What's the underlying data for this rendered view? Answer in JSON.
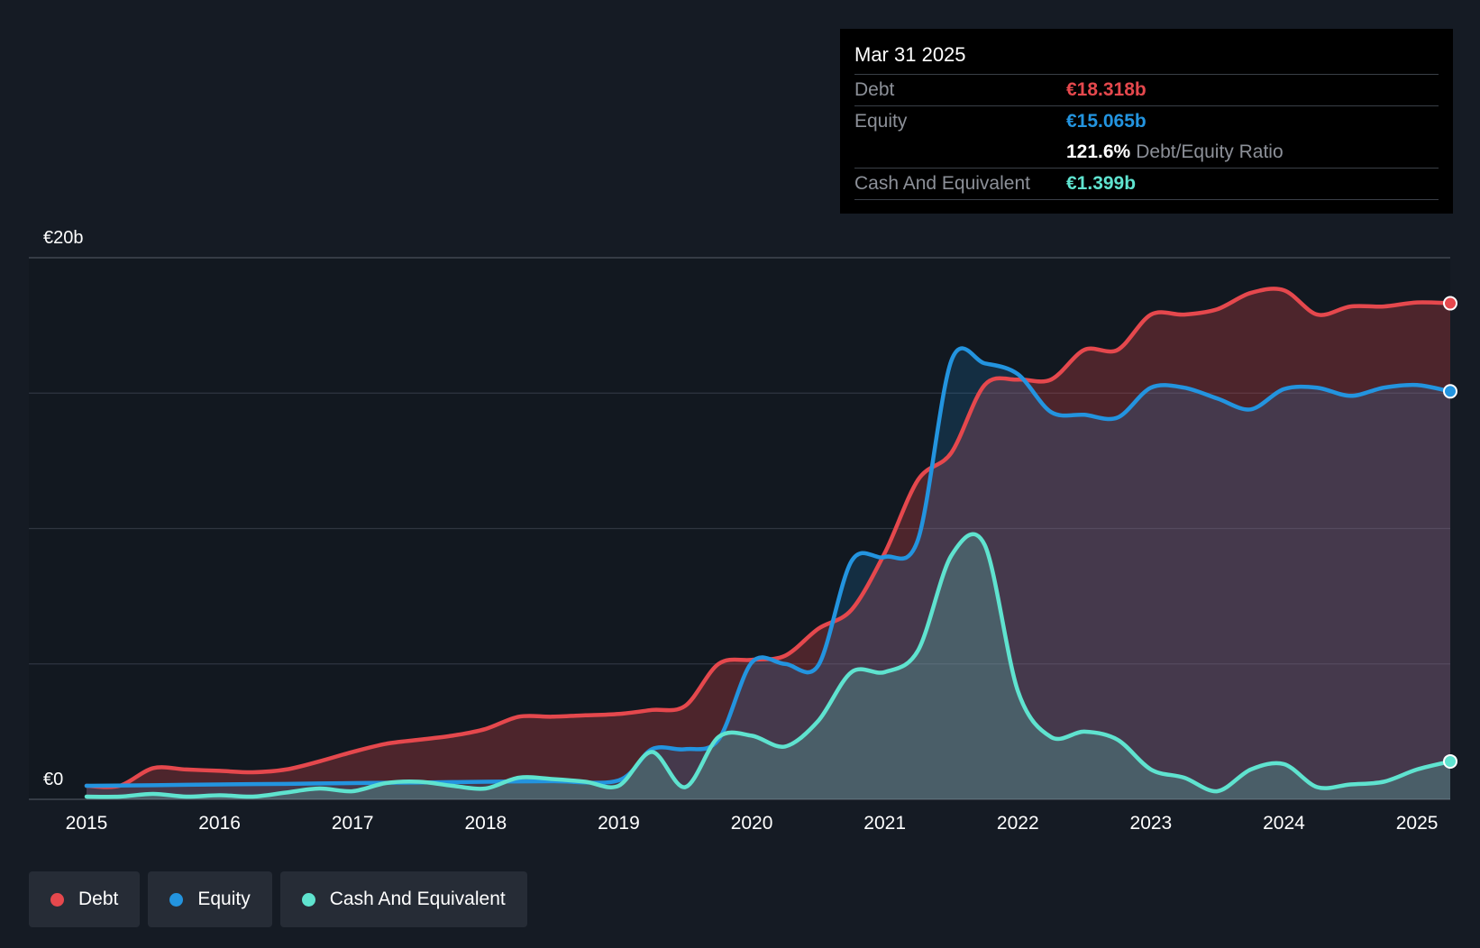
{
  "tooltip": {
    "date": "Mar 31 2025",
    "debt_label": "Debt",
    "debt_value": "€18.318b",
    "equity_label": "Equity",
    "equity_value": "€15.065b",
    "ratio_value": "121.6%",
    "ratio_label": "Debt/Equity Ratio",
    "cash_label": "Cash And Equivalent",
    "cash_value": "€1.399b"
  },
  "legend": {
    "items": [
      {
        "label": "Debt",
        "color": "#e5484d"
      },
      {
        "label": "Equity",
        "color": "#2394df"
      },
      {
        "label": "Cash And Equivalent",
        "color": "#5fe3cf"
      }
    ]
  },
  "chart_data": {
    "type": "area",
    "title": "",
    "xlabel": "",
    "ylabel": "",
    "ylim": [
      0,
      20
    ],
    "xlim": [
      2015.0,
      2025.25
    ],
    "y_tick_labels": [
      {
        "value": 20,
        "label": "€20b"
      },
      {
        "value": 0,
        "label": "€0"
      }
    ],
    "gridlines": [
      0,
      5,
      10,
      15,
      20
    ],
    "x_ticks": [
      2015,
      2016,
      2017,
      2018,
      2019,
      2020,
      2021,
      2022,
      2023,
      2024,
      2025
    ],
    "x_tick_labels": [
      "2015",
      "2016",
      "2017",
      "2018",
      "2019",
      "2020",
      "2021",
      "2022",
      "2023",
      "2024",
      "2025"
    ],
    "series": [
      {
        "name": "Debt",
        "color": "#e5484d",
        "points": [
          [
            2015.0,
            0.5
          ],
          [
            2015.25,
            0.5
          ],
          [
            2015.5,
            1.15
          ],
          [
            2015.75,
            1.1
          ],
          [
            2016.0,
            1.05
          ],
          [
            2016.25,
            1.0
          ],
          [
            2016.5,
            1.1
          ],
          [
            2016.75,
            1.4
          ],
          [
            2017.0,
            1.75
          ],
          [
            2017.25,
            2.05
          ],
          [
            2017.5,
            2.2
          ],
          [
            2017.75,
            2.35
          ],
          [
            2018.0,
            2.6
          ],
          [
            2018.25,
            3.05
          ],
          [
            2018.5,
            3.05
          ],
          [
            2018.75,
            3.1
          ],
          [
            2019.0,
            3.15
          ],
          [
            2019.25,
            3.3
          ],
          [
            2019.5,
            3.45
          ],
          [
            2019.75,
            5.0
          ],
          [
            2020.0,
            5.15
          ],
          [
            2020.25,
            5.3
          ],
          [
            2020.5,
            6.3
          ],
          [
            2020.75,
            7.0
          ],
          [
            2021.0,
            9.1
          ],
          [
            2021.25,
            11.8
          ],
          [
            2021.5,
            12.8
          ],
          [
            2021.75,
            15.3
          ],
          [
            2022.0,
            15.5
          ],
          [
            2022.25,
            15.5
          ],
          [
            2022.5,
            16.6
          ],
          [
            2022.75,
            16.6
          ],
          [
            2023.0,
            17.9
          ],
          [
            2023.25,
            17.9
          ],
          [
            2023.5,
            18.1
          ],
          [
            2023.75,
            18.7
          ],
          [
            2024.0,
            18.8
          ],
          [
            2024.25,
            17.9
          ],
          [
            2024.5,
            18.2
          ],
          [
            2024.75,
            18.2
          ],
          [
            2025.0,
            18.35
          ],
          [
            2025.25,
            18.318
          ]
        ]
      },
      {
        "name": "Equity",
        "color": "#2394df",
        "points": [
          [
            2015.0,
            0.5
          ],
          [
            2015.5,
            0.52
          ],
          [
            2016.0,
            0.55
          ],
          [
            2016.5,
            0.57
          ],
          [
            2017.0,
            0.6
          ],
          [
            2017.5,
            0.62
          ],
          [
            2018.0,
            0.65
          ],
          [
            2018.5,
            0.67
          ],
          [
            2019.0,
            0.7
          ],
          [
            2019.25,
            1.85
          ],
          [
            2019.5,
            1.85
          ],
          [
            2019.75,
            2.2
          ],
          [
            2020.0,
            5.05
          ],
          [
            2020.25,
            5.0
          ],
          [
            2020.5,
            4.95
          ],
          [
            2020.75,
            8.8
          ],
          [
            2021.0,
            8.95
          ],
          [
            2021.25,
            9.6
          ],
          [
            2021.5,
            16.2
          ],
          [
            2021.75,
            16.1
          ],
          [
            2022.0,
            15.7
          ],
          [
            2022.25,
            14.3
          ],
          [
            2022.5,
            14.2
          ],
          [
            2022.75,
            14.1
          ],
          [
            2023.0,
            15.2
          ],
          [
            2023.25,
            15.2
          ],
          [
            2023.5,
            14.8
          ],
          [
            2023.75,
            14.4
          ],
          [
            2024.0,
            15.15
          ],
          [
            2024.25,
            15.2
          ],
          [
            2024.5,
            14.9
          ],
          [
            2024.75,
            15.2
          ],
          [
            2025.0,
            15.3
          ],
          [
            2025.25,
            15.065
          ]
        ]
      },
      {
        "name": "Cash And Equivalent",
        "color": "#5fe3cf",
        "points": [
          [
            2015.0,
            0.1
          ],
          [
            2015.25,
            0.1
          ],
          [
            2015.5,
            0.2
          ],
          [
            2015.75,
            0.1
          ],
          [
            2016.0,
            0.15
          ],
          [
            2016.25,
            0.1
          ],
          [
            2016.5,
            0.25
          ],
          [
            2016.75,
            0.4
          ],
          [
            2017.0,
            0.3
          ],
          [
            2017.25,
            0.6
          ],
          [
            2017.5,
            0.65
          ],
          [
            2017.75,
            0.5
          ],
          [
            2018.0,
            0.4
          ],
          [
            2018.25,
            0.8
          ],
          [
            2018.5,
            0.75
          ],
          [
            2018.75,
            0.65
          ],
          [
            2019.0,
            0.5
          ],
          [
            2019.25,
            1.75
          ],
          [
            2019.5,
            0.45
          ],
          [
            2019.75,
            2.3
          ],
          [
            2020.0,
            2.35
          ],
          [
            2020.25,
            1.95
          ],
          [
            2020.5,
            2.9
          ],
          [
            2020.75,
            4.7
          ],
          [
            2021.0,
            4.7
          ],
          [
            2021.25,
            5.5
          ],
          [
            2021.5,
            9.0
          ],
          [
            2021.75,
            9.4
          ],
          [
            2022.0,
            4.0
          ],
          [
            2022.25,
            2.3
          ],
          [
            2022.5,
            2.5
          ],
          [
            2022.75,
            2.2
          ],
          [
            2023.0,
            1.1
          ],
          [
            2023.25,
            0.8
          ],
          [
            2023.5,
            0.3
          ],
          [
            2023.75,
            1.1
          ],
          [
            2024.0,
            1.3
          ],
          [
            2024.25,
            0.45
          ],
          [
            2024.5,
            0.55
          ],
          [
            2024.75,
            0.65
          ],
          [
            2025.0,
            1.1
          ],
          [
            2025.25,
            1.399
          ]
        ]
      }
    ]
  }
}
